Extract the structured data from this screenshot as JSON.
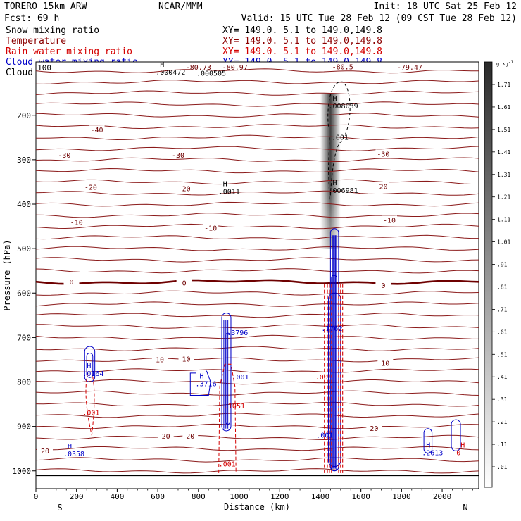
{
  "header": {
    "model": "TORERO  15km ARW",
    "org": "NCAR/MMM",
    "init": "Init: 18 UTC Sat 25 Feb 12",
    "fcst": "Fcst:   69 h",
    "valid": "Valid: 15 UTC Tue 28 Feb 12 (09 CST Tue 28 Feb 12)"
  },
  "legend": [
    {
      "name": "Snow mixing ratio",
      "xy": "XY= 149.0.  5.1 to 149.0,149.8",
      "color": "#000000"
    },
    {
      "name": "Temperature",
      "xy": "XY= 149.0.  5.1 to 149.0,149.8",
      "color": "#8b0000"
    },
    {
      "name": "Rain water mixing ratio",
      "xy": "XY= 149.0.  5.1 to 149.0,149.8",
      "color": "#d40000"
    },
    {
      "name": "Cloud water mixing ratio",
      "xy": "XY= 149.0.  5.1 to 149.0,149.8",
      "color": "#0000c8"
    },
    {
      "name": "Cloud ice mixing ratio",
      "xy": "XY= 149.0.  5.1 to 149.0,149.8",
      "color": "#000000"
    }
  ],
  "chart_data": {
    "type": "cross-section contour",
    "xlabel": "Distance (km)",
    "ylabel": "Pressure (hPa)",
    "x_ticks": [
      0,
      200,
      400,
      600,
      800,
      1000,
      1200,
      1400,
      1600,
      1800,
      2000
    ],
    "y_ticks": [
      200,
      300,
      400,
      500,
      600,
      700,
      800,
      900,
      1000
    ],
    "y_top_label": "100",
    "xlim": [
      0,
      2180
    ],
    "ylim": [
      1040,
      80
    ],
    "x_end_labels": {
      "left": "S",
      "right": "N"
    },
    "colorbar": {
      "unit": "g kg",
      "unit_exp": "-1",
      "labels": [
        "1.71",
        "1.61",
        "1.51",
        "1.41",
        "1.31",
        "1.21",
        "1.11",
        "1.01",
        ".91",
        ".81",
        ".71",
        ".61",
        ".51",
        ".41",
        ".31",
        ".21",
        ".11",
        ".01"
      ]
    },
    "temperature_labels": [
      {
        "text": "-80.73",
        "x": 800,
        "p": 93
      },
      {
        "text": "-80.97",
        "x": 980,
        "p": 93
      },
      {
        "text": "-80.5",
        "x": 1510,
        "p": 92
      },
      {
        "text": "-79.47",
        "x": 1840,
        "p": 93
      },
      {
        "text": "-40",
        "x": 300,
        "p": 234
      },
      {
        "text": "-30",
        "x": 140,
        "p": 291
      },
      {
        "text": "-30",
        "x": 700,
        "p": 291
      },
      {
        "text": "-30",
        "x": 1710,
        "p": 288
      },
      {
        "text": "-20",
        "x": 270,
        "p": 363
      },
      {
        "text": "-20",
        "x": 730,
        "p": 366
      },
      {
        "text": "-20",
        "x": 1700,
        "p": 361
      },
      {
        "text": "-10",
        "x": 200,
        "p": 442
      },
      {
        "text": "-10",
        "x": 860,
        "p": 455
      },
      {
        "text": "-10",
        "x": 1740,
        "p": 437
      },
      {
        "text": "0",
        "x": 175,
        "p": 576
      },
      {
        "text": "0",
        "x": 730,
        "p": 578
      },
      {
        "text": "0",
        "x": 1710,
        "p": 584
      },
      {
        "text": "10",
        "x": 610,
        "p": 751
      },
      {
        "text": "10",
        "x": 740,
        "p": 749
      },
      {
        "text": "10",
        "x": 1720,
        "p": 759
      },
      {
        "text": "20",
        "x": 45,
        "p": 956
      },
      {
        "text": "20",
        "x": 640,
        "p": 923
      },
      {
        "text": "20",
        "x": 760,
        "p": 923
      },
      {
        "text": "20",
        "x": 1665,
        "p": 905
      }
    ],
    "max_labels": [
      {
        "text": ".000472",
        "x": 590,
        "p": 104,
        "color": "#000000",
        "h": true
      },
      {
        "text": ".000505",
        "x": 790,
        "p": 106,
        "color": "#000000",
        "h": false
      },
      {
        "text": ".008039",
        "x": 1440,
        "p": 180,
        "color": "#000000",
        "h": true
      },
      {
        "text": ".001",
        "x": 1455,
        "p": 250,
        "color": "#000000",
        "h": false
      },
      {
        "text": ".0011",
        "x": 900,
        "p": 372,
        "color": "#000000",
        "h": true
      },
      {
        "text": ".006981",
        "x": 1440,
        "p": 370,
        "color": "#000000",
        "h": true
      },
      {
        "text": ".3796",
        "x": 940,
        "p": 690,
        "color": "#0000c8",
        "h": false
      },
      {
        "text": ".3716",
        "x": 785,
        "p": 805,
        "color": "#0000c8",
        "h": true
      },
      {
        "text": ".001",
        "x": 965,
        "p": 790,
        "color": "#0000c8",
        "h": false
      },
      {
        "text": ".0164",
        "x": 230,
        "p": 782,
        "color": "#0000c8",
        "h": true
      },
      {
        "text": ".001",
        "x": 230,
        "p": 870,
        "color": "#d40000",
        "h": false
      },
      {
        "text": ".1051",
        "x": 925,
        "p": 855,
        "color": "#d40000",
        "h": false
      },
      {
        "text": ".001",
        "x": 900,
        "p": 985,
        "color": "#d40000",
        "h": false
      },
      {
        "text": ".0358",
        "x": 135,
        "p": 962,
        "color": "#0000c8",
        "h": true
      },
      {
        "text": ".2613",
        "x": 1900,
        "p": 960,
        "color": "#0000c8",
        "h": true
      },
      {
        "text": "0",
        "x": 2070,
        "p": 960,
        "color": "#d40000",
        "h": true
      },
      {
        "text": ".001",
        "x": 1380,
        "p": 920,
        "color": "#0000c8",
        "h": false
      },
      {
        "text": ".00",
        "x": 1375,
        "p": 790,
        "color": "#d40000",
        "h": false
      },
      {
        "text": ".1762",
        "x": 1405,
        "p": 680,
        "color": "#0000c8",
        "h": false
      }
    ]
  }
}
